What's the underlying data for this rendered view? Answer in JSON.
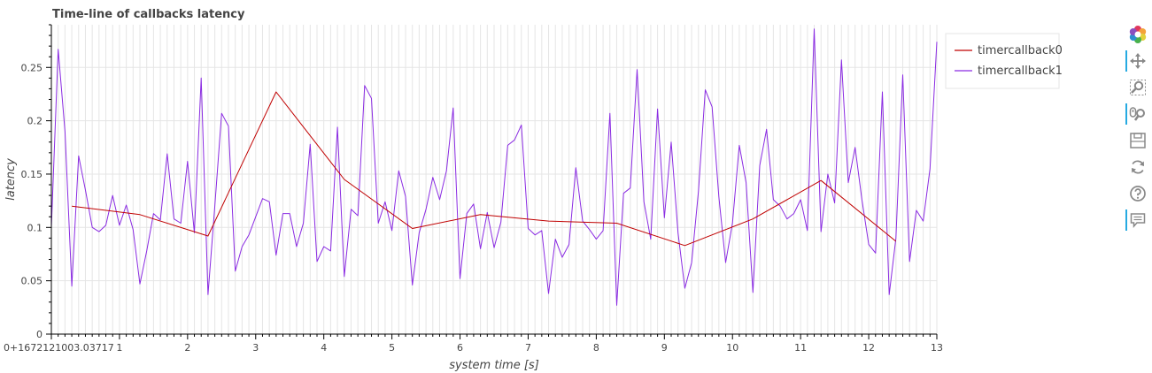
{
  "chart_data": {
    "type": "line",
    "title": "Time-line of callbacks latency",
    "xlabel": "system time [s]",
    "ylabel": "latency",
    "x_offset_label": "0+1672121003.03717",
    "xlim": [
      0,
      13
    ],
    "ylim": [
      0,
      0.29
    ],
    "x_ticks": [
      1,
      2,
      3,
      4,
      5,
      6,
      7,
      8,
      9,
      10,
      11,
      12,
      13
    ],
    "x_tick_labels": [
      "1",
      "2",
      "3",
      "4",
      "5",
      "6",
      "7",
      "8",
      "9",
      "10",
      "11",
      "12",
      "13"
    ],
    "y_ticks": [
      0,
      0.05,
      0.1,
      0.15,
      0.2,
      0.25
    ],
    "y_tick_labels": [
      "0",
      "0.05",
      "0.1",
      "0.15",
      "0.2",
      "0.25"
    ],
    "grid": true,
    "legend_position": "top-right, outside plot",
    "series": [
      {
        "name": "timercallback0",
        "color": "#c00000",
        "x": [
          0.3,
          1.3,
          2.3,
          3.3,
          4.3,
          5.3,
          6.3,
          7.3,
          8.3,
          9.3,
          10.3,
          11.3,
          12.4
        ],
        "y": [
          0.12,
          0.112,
          0.092,
          0.227,
          0.145,
          0.099,
          0.112,
          0.106,
          0.104,
          0.083,
          0.108,
          0.144,
          0.087
        ]
      },
      {
        "name": "timercallback1",
        "color": "#8a2be2",
        "x": [
          0.0,
          0.1,
          0.2,
          0.3,
          0.4,
          0.5,
          0.6,
          0.7,
          0.8,
          0.9,
          1.0,
          1.1,
          1.2,
          1.3,
          1.4,
          1.5,
          1.6,
          1.7,
          1.8,
          1.9,
          2.0,
          2.1,
          2.2,
          2.3,
          2.4,
          2.5,
          2.6,
          2.7,
          2.8,
          2.9,
          3.0,
          3.1,
          3.2,
          3.3,
          3.4,
          3.5,
          3.6,
          3.7,
          3.8,
          3.9,
          4.0,
          4.1,
          4.2,
          4.3,
          4.4,
          4.5,
          4.6,
          4.7,
          4.8,
          4.9,
          5.0,
          5.1,
          5.2,
          5.3,
          5.4,
          5.5,
          5.6,
          5.7,
          5.8,
          5.9,
          6.0,
          6.1,
          6.2,
          6.3,
          6.4,
          6.5,
          6.6,
          6.7,
          6.8,
          6.9,
          7.0,
          7.1,
          7.2,
          7.3,
          7.4,
          7.5,
          7.6,
          7.7,
          7.8,
          7.9,
          8.0,
          8.1,
          8.2,
          8.3,
          8.4,
          8.5,
          8.6,
          8.7,
          8.8,
          8.9,
          9.0,
          9.1,
          9.2,
          9.3,
          9.4,
          9.5,
          9.6,
          9.7,
          9.8,
          9.9,
          10.0,
          10.1,
          10.2,
          10.3,
          10.4,
          10.5,
          10.6,
          10.7,
          10.8,
          10.9,
          11.0,
          11.1,
          11.2,
          11.3,
          11.4,
          11.5,
          11.6,
          11.7,
          11.8,
          11.9,
          12.0,
          12.1,
          12.2,
          12.3,
          12.4,
          12.5,
          12.6,
          12.7,
          12.8,
          12.9,
          13.0
        ],
        "y": [
          0.1,
          0.267,
          0.19,
          0.045,
          0.167,
          0.135,
          0.1,
          0.096,
          0.102,
          0.13,
          0.102,
          0.121,
          0.098,
          0.047,
          0.078,
          0.113,
          0.107,
          0.169,
          0.108,
          0.104,
          0.162,
          0.095,
          0.24,
          0.037,
          0.12,
          0.207,
          0.195,
          0.059,
          0.082,
          0.093,
          0.11,
          0.127,
          0.124,
          0.074,
          0.113,
          0.113,
          0.082,
          0.104,
          0.178,
          0.068,
          0.082,
          0.078,
          0.194,
          0.054,
          0.117,
          0.111,
          0.233,
          0.221,
          0.104,
          0.124,
          0.097,
          0.153,
          0.129,
          0.046,
          0.095,
          0.117,
          0.147,
          0.126,
          0.153,
          0.212,
          0.052,
          0.113,
          0.122,
          0.08,
          0.114,
          0.081,
          0.105,
          0.177,
          0.182,
          0.196,
          0.099,
          0.093,
          0.097,
          0.038,
          0.089,
          0.072,
          0.084,
          0.156,
          0.106,
          0.098,
          0.089,
          0.097,
          0.207,
          0.027,
          0.132,
          0.137,
          0.248,
          0.124,
          0.089,
          0.211,
          0.109,
          0.18,
          0.095,
          0.043,
          0.067,
          0.134,
          0.229,
          0.213,
          0.129,
          0.067,
          0.104,
          0.177,
          0.142,
          0.039,
          0.158,
          0.192,
          0.126,
          0.12,
          0.108,
          0.113,
          0.126,
          0.097,
          0.286,
          0.096,
          0.15,
          0.123,
          0.257,
          0.142,
          0.175,
          0.126,
          0.084,
          0.076,
          0.227,
          0.037,
          0.09,
          0.243,
          0.068,
          0.116,
          0.106,
          0.155,
          0.274
        ]
      }
    ]
  },
  "toolbar": {
    "tools": [
      {
        "icon": "bokeh-logo-icon",
        "active": false
      },
      {
        "icon": "pan-icon",
        "active": true
      },
      {
        "icon": "box-zoom-icon",
        "active": false
      },
      {
        "icon": "wheel-zoom-icon",
        "active": true
      },
      {
        "icon": "save-icon",
        "active": false
      },
      {
        "icon": "reset-icon",
        "active": false
      },
      {
        "icon": "help-icon",
        "active": false
      },
      {
        "icon": "hover-icon",
        "active": true
      }
    ]
  }
}
